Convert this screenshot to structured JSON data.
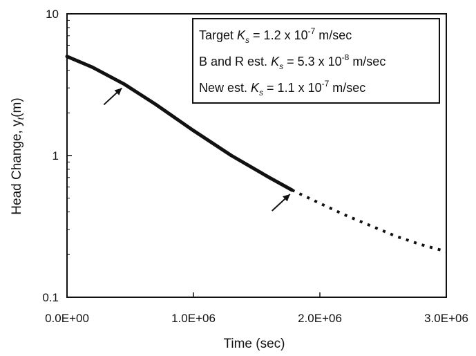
{
  "chart_data": {
    "type": "line",
    "title": "",
    "xlabel": "Time (sec)",
    "ylabel": {
      "main": "Head Change, y",
      "sub": "t",
      "unit": "(m)"
    },
    "xlim": [
      0,
      3000000
    ],
    "ylim": [
      0.1,
      10
    ],
    "y_scale": "log",
    "grid": false,
    "x_ticks": [
      {
        "value": 0,
        "label": "0.0E+00"
      },
      {
        "value": 1000000,
        "label": "1.0E+06"
      },
      {
        "value": 2000000,
        "label": "2.0E+06"
      },
      {
        "value": 3000000,
        "label": "3.0E+06"
      }
    ],
    "y_ticks": [
      {
        "value": 0.1,
        "label": "0.1"
      },
      {
        "value": 1,
        "label": "1"
      },
      {
        "value": 10,
        "label": "10"
      }
    ],
    "series": [
      {
        "style": "solid-thick",
        "x": [
          0,
          200000,
          450000,
          700000,
          1000000,
          1300000,
          1600000,
          1780000
        ],
        "y": [
          5.0,
          4.2,
          3.2,
          2.3,
          1.5,
          1.0,
          0.7,
          0.57
        ]
      },
      {
        "style": "dotted",
        "x": [
          1780000,
          2000000,
          2200000,
          2400000,
          2600000,
          2800000,
          3000000
        ],
        "y": [
          0.57,
          0.46,
          0.38,
          0.32,
          0.27,
          0.235,
          0.21
        ]
      }
    ],
    "annotations": [
      {
        "type": "arrow",
        "x": 450000,
        "y": 3.2
      },
      {
        "type": "arrow",
        "x": 1780000,
        "y": 0.57
      }
    ],
    "legend": {
      "placement": "top-right",
      "lines": [
        {
          "pre": "Target ",
          "k": "K",
          "ksub": "s",
          "mid": " = 1.2 x 10",
          "sup": "-7",
          "post": " m/sec"
        },
        {
          "pre": "B and R est. ",
          "k": "K",
          "ksub": "s",
          "mid": " = 5.3 x 10",
          "sup": "-8",
          "post": " m/sec"
        },
        {
          "pre": "New est. ",
          "k": "K",
          "ksub": "s",
          "mid": " = 1.1 x 10",
          "sup": "-7",
          "post": " m/sec"
        }
      ]
    }
  }
}
